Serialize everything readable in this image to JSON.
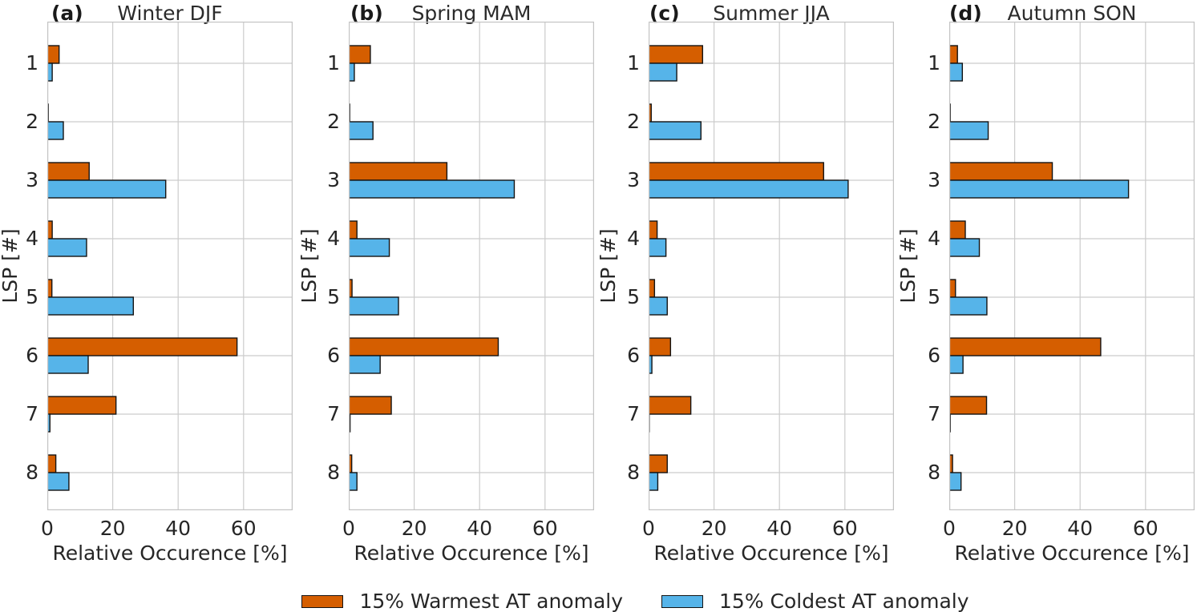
{
  "legend": {
    "items": [
      {
        "key": "warm",
        "label": "15% Warmest AT anomaly",
        "color": "#d55e00"
      },
      {
        "key": "cold",
        "label": "15% Coldest AT anomaly",
        "color": "#56b4e9"
      }
    ]
  },
  "chart_data": {
    "type": "bar",
    "orientation": "horizontal",
    "categories": [
      "1",
      "2",
      "3",
      "4",
      "5",
      "6",
      "7",
      "8"
    ],
    "ylabel": "LSP [#]",
    "xlabel": "Relative Occurence [%]",
    "xlim": [
      0,
      75
    ],
    "xticks": [
      0,
      20,
      40,
      60
    ],
    "grid": true,
    "legend_position": "bottom",
    "series_names": [
      "15% Warmest AT anomaly",
      "15% Coldest AT anomaly"
    ],
    "series_colors": [
      "#d55e00",
      "#56b4e9"
    ],
    "bar_edge_color": "#141414",
    "grid_color": "#cccccc",
    "panels": [
      {
        "label": "(a)",
        "title": "Winter DJF",
        "series": [
          {
            "name": "15% Warmest AT anomaly",
            "values": [
              3.6,
              0.3,
              12.8,
              1.5,
              1.4,
              58.0,
              21.0,
              2.6
            ]
          },
          {
            "name": "15% Coldest AT anomaly",
            "values": [
              1.5,
              4.9,
              36.2,
              12.0,
              26.3,
              12.5,
              0.8,
              6.6
            ]
          }
        ]
      },
      {
        "label": "(b)",
        "title": "Spring MAM",
        "series": [
          {
            "name": "15% Warmest AT anomaly",
            "values": [
              6.6,
              0.3,
              30.0,
              2.5,
              1.0,
              45.7,
              13.0,
              0.9
            ]
          },
          {
            "name": "15% Coldest AT anomaly",
            "values": [
              1.7,
              7.4,
              50.6,
              12.4,
              15.2,
              9.6,
              0.4,
              2.5
            ]
          }
        ]
      },
      {
        "label": "(c)",
        "title": "Summer JJA",
        "series": [
          {
            "name": "15% Warmest AT anomaly",
            "values": [
              16.5,
              0.8,
              53.5,
              2.6,
              1.8,
              6.7,
              12.9,
              5.7
            ]
          },
          {
            "name": "15% Coldest AT anomaly",
            "values": [
              8.6,
              16.0,
              61.0,
              5.3,
              5.7,
              1.0,
              0.2,
              2.8
            ]
          }
        ]
      },
      {
        "label": "(d)",
        "title": "Autumn SON",
        "series": [
          {
            "name": "15% Warmest AT anomaly",
            "values": [
              2.5,
              0.3,
              31.5,
              4.9,
              1.9,
              46.3,
              11.4,
              1.0
            ]
          },
          {
            "name": "15% Coldest AT anomaly",
            "values": [
              4.0,
              11.9,
              54.8,
              9.2,
              11.5,
              4.2,
              0.3,
              3.6
            ]
          }
        ]
      }
    ]
  }
}
